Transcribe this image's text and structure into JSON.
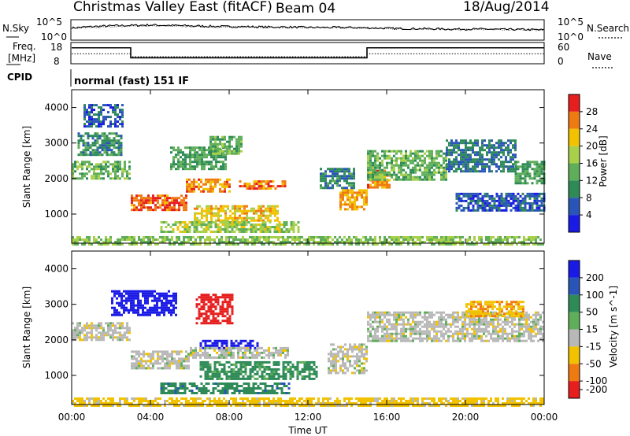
{
  "header": {
    "title": "Christmas Valley East (fitACF)",
    "beam": "Beam 04",
    "date": "18/Aug/2014"
  },
  "status_panels": {
    "nsky_label": "N.Sky",
    "nsearch_label": "N.Search",
    "freq_label_line1": "Freq.",
    "freq_label_line2": "[MHz]",
    "nave_label": "Nave",
    "cpid_label": "CPID",
    "cpid_value": "normal (fast) 151 IF",
    "noise_ticks_left": [
      "10^5",
      "10^0"
    ],
    "noise_ticks_right": [
      "10^5",
      "10^0"
    ],
    "freq_ticks": [
      "18",
      "8"
    ],
    "nave_ticks": [
      "60",
      "0"
    ]
  },
  "colors": {
    "power_scale": [
      "#1a1ae6",
      "#2a55b8",
      "#2e8b57",
      "#5fae5a",
      "#a8d04a",
      "#f2c200",
      "#f07a12",
      "#e61e1e"
    ],
    "velocity_scale": [
      "#1a1ae6",
      "#2a55b8",
      "#2e8b57",
      "#5fae5a",
      "#b8b8b8",
      "#f2c200",
      "#f07a12",
      "#e61e1e"
    ]
  },
  "chart_data": [
    {
      "type": "line",
      "title": "",
      "x_range_hours": [
        0,
        24
      ],
      "series": [
        {
          "name": "N.Sky",
          "values": [
            3.0,
            3.3,
            3.5,
            3.6,
            3.7,
            3.6,
            3.5,
            3.4,
            3.3,
            3.3,
            3.2,
            3.2,
            3.1,
            3.1,
            3.1,
            3.0,
            2.9,
            2.8,
            2.8,
            2.7,
            2.7,
            2.7,
            2.6,
            2.6,
            2.5
          ]
        },
        {
          "name": "N.Search",
          "values": [
            2.9,
            3.1,
            3.3,
            3.4,
            3.5,
            3.4,
            3.3,
            3.2,
            3.2,
            3.2,
            3.1,
            3.1,
            3.0,
            3.0,
            3.0,
            2.9,
            2.8,
            2.7,
            2.7,
            2.6,
            2.6,
            2.6,
            2.5,
            2.5,
            2.4
          ]
        }
      ]
    },
    {
      "type": "line",
      "title": "",
      "x_range_hours": [
        0,
        24
      ],
      "series": [
        {
          "name": "Freq.",
          "unit": "MHz",
          "segments": [
            [
              0,
              3,
              15.5
            ],
            [
              3,
              15,
              10.8
            ],
            [
              15,
              24,
              15.5
            ]
          ]
        },
        {
          "name": "Nave",
          "segments": [
            [
              0,
              3,
              28
            ],
            [
              3,
              15,
              20
            ],
            [
              15,
              24,
              28
            ]
          ]
        }
      ]
    },
    {
      "type": "heatmap",
      "title": "",
      "xlabel": "",
      "ylabel": "Slant Range [km]",
      "x_range_hours": [
        0,
        24
      ],
      "ylim": [
        180,
        4500
      ],
      "y_ticks": [
        "1000",
        "2000",
        "3000",
        "4000"
      ],
      "colorbar_label": "Power [dB]",
      "colorbar_ticks": [
        "4",
        "8",
        "12",
        "16",
        "20",
        "24",
        "28"
      ],
      "colorbar_range": [
        0,
        32
      ],
      "regions": [
        {
          "t0": 0.0,
          "t1": 3.0,
          "r0": 2000,
          "r1": 2500,
          "value": 14
        },
        {
          "t0": 0.3,
          "t1": 2.5,
          "r0": 2700,
          "r1": 3300,
          "value": 10
        },
        {
          "t0": 0.6,
          "t1": 2.6,
          "r0": 3500,
          "r1": 4100,
          "value": 6
        },
        {
          "t0": 3.0,
          "t1": 5.8,
          "r0": 1150,
          "r1": 1550,
          "value": 27
        },
        {
          "t0": 5.8,
          "t1": 8.0,
          "r0": 1650,
          "r1": 2000,
          "value": 25
        },
        {
          "t0": 8.5,
          "t1": 10.8,
          "r0": 1700,
          "r1": 1950,
          "value": 26
        },
        {
          "t0": 5.0,
          "t1": 7.8,
          "r0": 2300,
          "r1": 2900,
          "value": 12
        },
        {
          "t0": 7.0,
          "t1": 8.6,
          "r0": 2700,
          "r1": 3200,
          "value": 14
        },
        {
          "t0": 6.2,
          "t1": 10.5,
          "r0": 850,
          "r1": 1250,
          "value": 22
        },
        {
          "t0": 4.5,
          "t1": 11.5,
          "r0": 500,
          "r1": 800,
          "value": 17
        },
        {
          "t0": 12.6,
          "t1": 14.4,
          "r0": 1750,
          "r1": 2300,
          "value": 9
        },
        {
          "t0": 13.6,
          "t1": 15.0,
          "r0": 1150,
          "r1": 1700,
          "value": 24
        },
        {
          "t0": 15.0,
          "t1": 16.2,
          "r0": 1750,
          "r1": 2250,
          "value": 25
        },
        {
          "t0": 15.0,
          "t1": 19.0,
          "r0": 2000,
          "r1": 2800,
          "value": 14
        },
        {
          "t0": 19.0,
          "t1": 22.5,
          "r0": 2200,
          "r1": 3100,
          "value": 8
        },
        {
          "t0": 22.5,
          "t1": 24.0,
          "r0": 1900,
          "r1": 2500,
          "value": 12
        },
        {
          "t0": 19.5,
          "t1": 24.0,
          "r0": 1100,
          "r1": 1600,
          "value": 6
        },
        {
          "t0": 0.0,
          "t1": 24.0,
          "r0": 180,
          "r1": 380,
          "value": 16
        }
      ]
    },
    {
      "type": "heatmap",
      "title": "",
      "xlabel": "Time UT",
      "ylabel": "Slant Range [km]",
      "x_range_hours": [
        0,
        24
      ],
      "x_ticks": [
        "00:00",
        "04:00",
        "08:00",
        "12:00",
        "16:00",
        "20:00",
        "00:00"
      ],
      "ylim": [
        180,
        4500
      ],
      "y_ticks": [
        "1000",
        "2000",
        "3000",
        "4000"
      ],
      "colorbar_label": "Velocity [m s^-1]",
      "colorbar_ticks": [
        "200",
        "100",
        "50",
        "15",
        "-15",
        "-50",
        "-100",
        "-200"
      ],
      "colorbar_range": [
        -250,
        250
      ],
      "regions": [
        {
          "t0": 0.0,
          "t1": 3.0,
          "r0": 2000,
          "r1": 2500,
          "value": 0
        },
        {
          "t0": 2.0,
          "t1": 5.3,
          "r0": 2700,
          "r1": 3400,
          "value": 180
        },
        {
          "t0": 6.3,
          "t1": 8.2,
          "r0": 2500,
          "r1": 3300,
          "value": -180
        },
        {
          "t0": 6.5,
          "t1": 9.5,
          "r0": 1800,
          "r1": 2000,
          "value": 170
        },
        {
          "t0": 3.0,
          "t1": 6.0,
          "r0": 1200,
          "r1": 1700,
          "value": 0
        },
        {
          "t0": 6.0,
          "t1": 11.0,
          "r0": 1500,
          "r1": 1800,
          "value": 0
        },
        {
          "t0": 6.5,
          "t1": 12.5,
          "r0": 900,
          "r1": 1400,
          "value": 45
        },
        {
          "t0": 4.5,
          "t1": 11.0,
          "r0": 500,
          "r1": 800,
          "value": 60
        },
        {
          "t0": 13.0,
          "t1": 15.0,
          "r0": 1100,
          "r1": 1900,
          "value": 0
        },
        {
          "t0": 15.0,
          "t1": 24.0,
          "r0": 2000,
          "r1": 2800,
          "value": 0
        },
        {
          "t0": 20.0,
          "t1": 23.0,
          "r0": 2700,
          "r1": 3100,
          "value": -40
        },
        {
          "t0": 0.0,
          "t1": 24.0,
          "r0": 180,
          "r1": 380,
          "value": -30
        }
      ]
    }
  ]
}
